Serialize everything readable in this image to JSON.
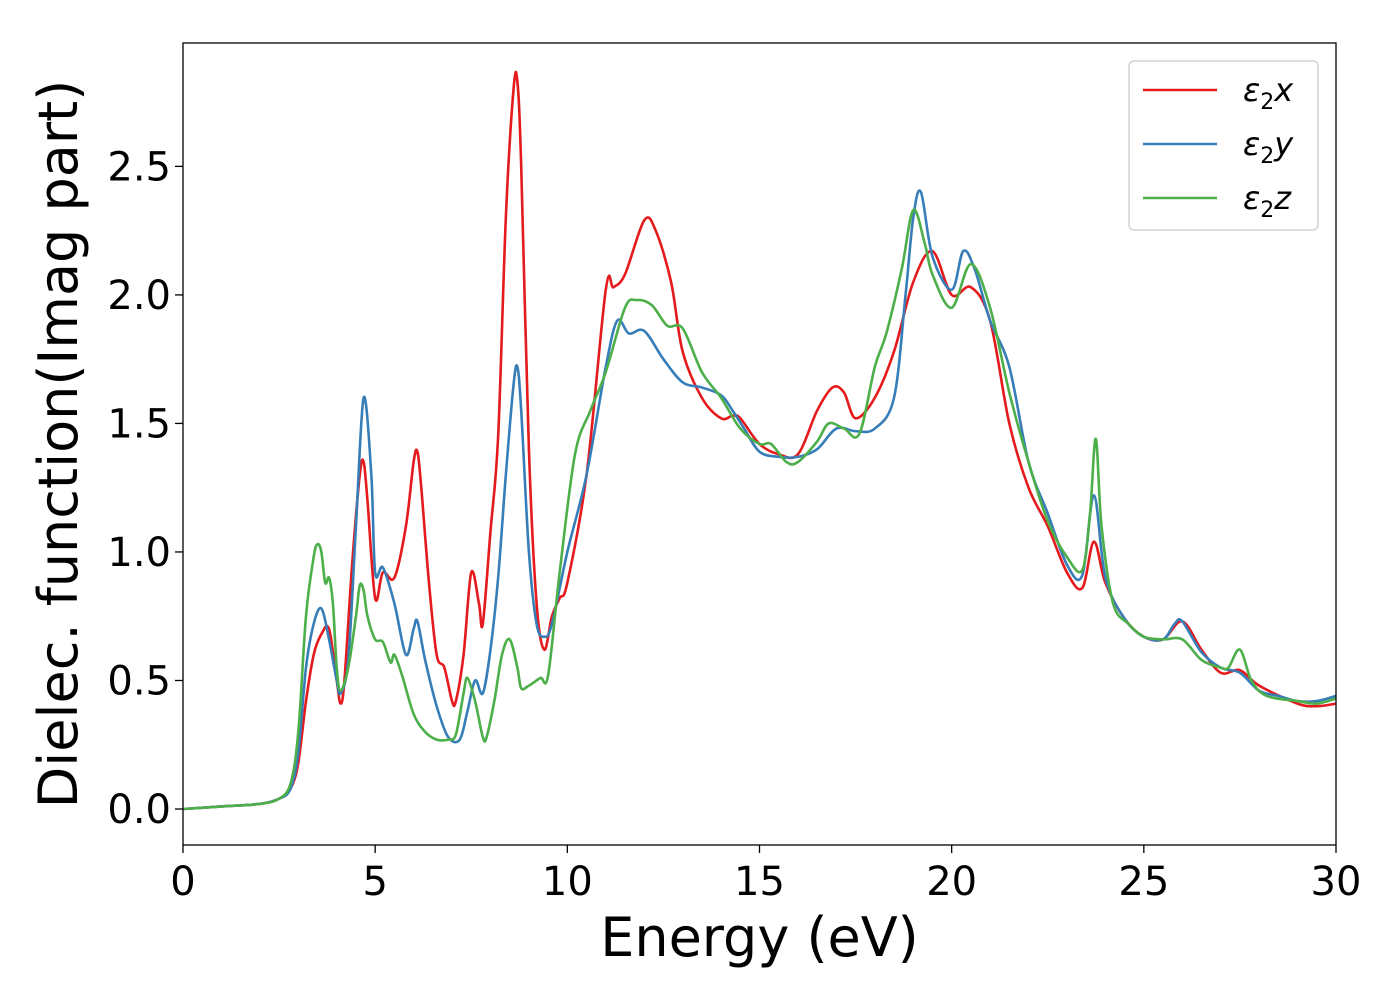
{
  "chart_data": {
    "type": "line",
    "title": "",
    "xlabel": "Energy (eV)",
    "ylabel": "Dielec. function(Imag part)",
    "xlim": [
      0,
      30
    ],
    "ylim": [
      -0.14,
      2.98
    ],
    "xticks": [
      0,
      5,
      10,
      15,
      20,
      25,
      30
    ],
    "yticks": [
      0.0,
      0.5,
      1.0,
      1.5,
      2.0,
      2.5
    ],
    "xtick_labels": [
      "0",
      "5",
      "10",
      "15",
      "20",
      "25",
      "30"
    ],
    "ytick_labels": [
      "0.0",
      "0.5",
      "1.0",
      "1.5",
      "2.0",
      "2.5"
    ],
    "grid": false,
    "legend": {
      "position": "top-right"
    },
    "series": [
      {
        "name": "ε₂x",
        "legend_main": "ε",
        "legend_sub": "2",
        "legend_suffix": "x",
        "color": "#e41a1c",
        "x": [
          0,
          1,
          2,
          2.5,
          2.8,
          3.0,
          3.2,
          3.4,
          3.6,
          3.8,
          4.0,
          4.1,
          4.2,
          4.4,
          4.6,
          4.7,
          4.8,
          5.0,
          5.2,
          5.5,
          5.8,
          6.0,
          6.1,
          6.2,
          6.4,
          6.6,
          6.8,
          7.0,
          7.1,
          7.3,
          7.5,
          7.7,
          7.8,
          8.0,
          8.2,
          8.4,
          8.6,
          8.7,
          8.8,
          9.0,
          9.2,
          9.4,
          9.6,
          9.8,
          10.0,
          10.5,
          11.0,
          11.2,
          11.5,
          12.0,
          12.3,
          12.7,
          13.0,
          13.5,
          14.0,
          14.3,
          14.5,
          15.0,
          15.5,
          16.0,
          16.5,
          16.9,
          17.2,
          17.5,
          18.0,
          18.5,
          19.0,
          19.5,
          20.0,
          20.5,
          21.0,
          21.5,
          22.0,
          22.5,
          23.0,
          23.4,
          23.7,
          24.0,
          24.5,
          25.0,
          25.5,
          26.0,
          26.5,
          27.0,
          27.5,
          28.0,
          29.0,
          29.5,
          30.0
        ],
        "y": [
          0.0,
          0.01,
          0.02,
          0.04,
          0.08,
          0.18,
          0.42,
          0.6,
          0.68,
          0.7,
          0.5,
          0.41,
          0.5,
          0.95,
          1.3,
          1.35,
          1.2,
          0.82,
          0.92,
          0.9,
          1.1,
          1.35,
          1.39,
          1.25,
          0.88,
          0.6,
          0.55,
          0.42,
          0.42,
          0.6,
          0.92,
          0.8,
          0.72,
          1.08,
          1.45,
          2.3,
          2.8,
          2.83,
          2.5,
          1.4,
          0.8,
          0.62,
          0.75,
          0.82,
          0.88,
          1.3,
          2.02,
          2.03,
          2.08,
          2.29,
          2.25,
          2.05,
          1.78,
          1.6,
          1.52,
          1.53,
          1.52,
          1.42,
          1.38,
          1.38,
          1.55,
          1.64,
          1.62,
          1.52,
          1.6,
          1.78,
          2.05,
          2.17,
          2.0,
          2.03,
          1.9,
          1.5,
          1.25,
          1.1,
          0.92,
          0.86,
          1.04,
          0.88,
          0.74,
          0.67,
          0.66,
          0.73,
          0.62,
          0.53,
          0.54,
          0.48,
          0.41,
          0.4,
          0.41
        ]
      },
      {
        "name": "ε₂y",
        "legend_main": "ε",
        "legend_sub": "2",
        "legend_suffix": "y",
        "color": "#377eb8",
        "x": [
          0,
          1,
          2,
          2.5,
          2.8,
          3.0,
          3.2,
          3.4,
          3.6,
          3.8,
          4.0,
          4.1,
          4.3,
          4.5,
          4.7,
          4.9,
          5.0,
          5.2,
          5.5,
          5.8,
          6.0,
          6.1,
          6.3,
          6.6,
          6.9,
          7.2,
          7.4,
          7.6,
          7.8,
          8.0,
          8.2,
          8.4,
          8.6,
          8.7,
          8.8,
          9.0,
          9.2,
          9.4,
          9.6,
          10.0,
          10.5,
          11.0,
          11.3,
          11.6,
          12.0,
          12.5,
          13.0,
          13.5,
          14.0,
          14.3,
          14.6,
          15.0,
          15.5,
          16.0,
          16.5,
          17.0,
          17.5,
          18.0,
          18.5,
          18.8,
          19.0,
          19.2,
          19.5,
          20.0,
          20.3,
          20.6,
          21.0,
          21.5,
          22.0,
          22.5,
          23.0,
          23.4,
          23.7,
          24.0,
          24.5,
          25.0,
          25.5,
          25.8,
          26.0,
          26.5,
          27.0,
          27.5,
          28.0,
          28.5,
          29.0,
          29.5,
          30.0
        ],
        "y": [
          0.0,
          0.01,
          0.02,
          0.04,
          0.08,
          0.22,
          0.55,
          0.72,
          0.78,
          0.66,
          0.5,
          0.45,
          0.58,
          1.1,
          1.6,
          1.3,
          0.92,
          0.94,
          0.8,
          0.6,
          0.7,
          0.73,
          0.58,
          0.4,
          0.28,
          0.27,
          0.38,
          0.5,
          0.45,
          0.62,
          0.9,
          1.3,
          1.65,
          1.72,
          1.55,
          1.0,
          0.72,
          0.67,
          0.72,
          1.0,
          1.3,
          1.72,
          1.9,
          1.85,
          1.86,
          1.75,
          1.66,
          1.64,
          1.61,
          1.55,
          1.48,
          1.39,
          1.37,
          1.37,
          1.4,
          1.48,
          1.47,
          1.48,
          1.6,
          2.0,
          2.3,
          2.4,
          2.15,
          2.02,
          2.17,
          2.1,
          1.9,
          1.72,
          1.35,
          1.15,
          0.95,
          0.91,
          1.22,
          0.9,
          0.74,
          0.67,
          0.66,
          0.72,
          0.73,
          0.61,
          0.55,
          0.53,
          0.46,
          0.44,
          0.42,
          0.42,
          0.44
        ]
      },
      {
        "name": "ε₂z",
        "legend_main": "ε",
        "legend_sub": "2",
        "legend_suffix": "z",
        "color": "#4daf4a",
        "x": [
          0,
          1,
          2,
          2.5,
          2.8,
          3.0,
          3.2,
          3.4,
          3.5,
          3.6,
          3.7,
          3.8,
          3.9,
          4.0,
          4.1,
          4.3,
          4.5,
          4.6,
          4.7,
          4.8,
          5.0,
          5.2,
          5.4,
          5.5,
          5.7,
          6.0,
          6.3,
          6.6,
          6.9,
          7.1,
          7.3,
          7.4,
          7.6,
          7.8,
          7.9,
          8.1,
          8.3,
          8.5,
          8.7,
          8.8,
          9.0,
          9.3,
          9.5,
          9.8,
          10.2,
          10.6,
          11.0,
          11.5,
          11.8,
          12.2,
          12.6,
          13.0,
          13.5,
          14.0,
          14.5,
          15.0,
          15.3,
          15.7,
          16.0,
          16.5,
          16.8,
          17.2,
          17.6,
          18.0,
          18.3,
          18.7,
          19.0,
          19.3,
          19.5,
          20.0,
          20.5,
          21.0,
          21.5,
          22.0,
          22.5,
          23.0,
          23.4,
          23.6,
          23.75,
          23.9,
          24.2,
          24.6,
          25.0,
          25.5,
          26.0,
          26.5,
          27.0,
          27.2,
          27.5,
          27.8,
          28.2,
          29.0,
          29.5,
          30.0
        ],
        "y": [
          0.0,
          0.01,
          0.02,
          0.04,
          0.1,
          0.3,
          0.75,
          0.98,
          1.03,
          1.0,
          0.88,
          0.9,
          0.8,
          0.55,
          0.46,
          0.55,
          0.75,
          0.87,
          0.85,
          0.75,
          0.66,
          0.65,
          0.57,
          0.6,
          0.52,
          0.37,
          0.3,
          0.27,
          0.27,
          0.29,
          0.45,
          0.51,
          0.42,
          0.28,
          0.28,
          0.42,
          0.6,
          0.66,
          0.55,
          0.47,
          0.48,
          0.51,
          0.52,
          0.92,
          1.38,
          1.55,
          1.7,
          1.95,
          1.98,
          1.96,
          1.88,
          1.87,
          1.7,
          1.6,
          1.48,
          1.42,
          1.42,
          1.35,
          1.35,
          1.43,
          1.5,
          1.48,
          1.46,
          1.72,
          1.85,
          2.1,
          2.33,
          2.2,
          2.08,
          1.95,
          2.12,
          1.95,
          1.62,
          1.35,
          1.12,
          0.98,
          0.93,
          1.15,
          1.44,
          1.1,
          0.8,
          0.72,
          0.67,
          0.66,
          0.66,
          0.58,
          0.55,
          0.55,
          0.62,
          0.5,
          0.44,
          0.42,
          0.41,
          0.43
        ]
      }
    ]
  }
}
